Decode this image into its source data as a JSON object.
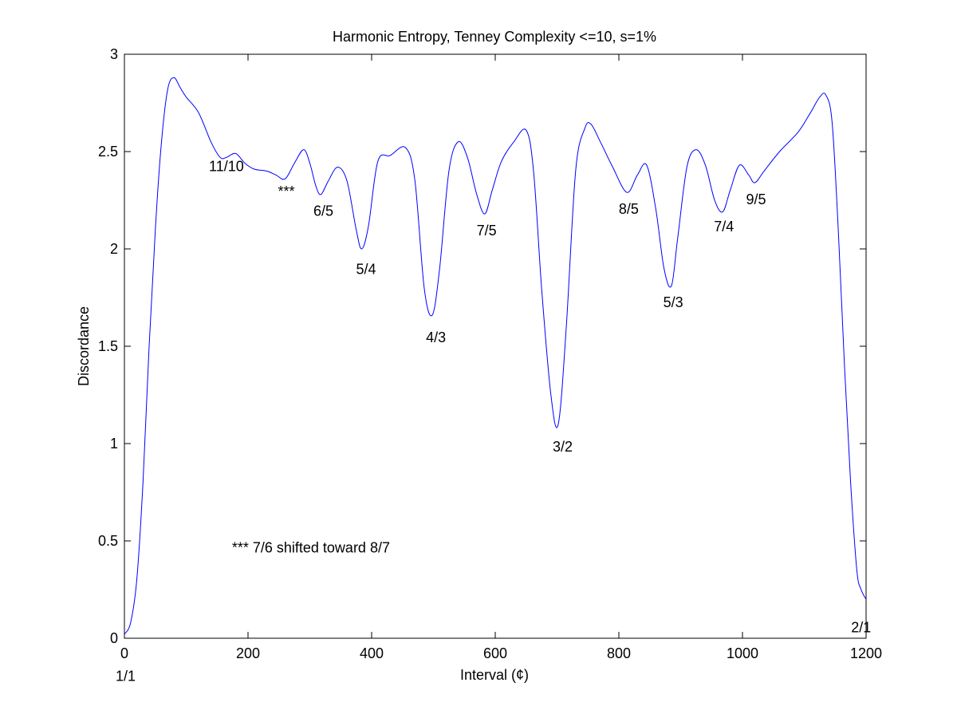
{
  "chart_data": {
    "type": "line",
    "title": "Harmonic Entropy, Tenney Complexity <=10, s=1%",
    "xlabel": "Interval (¢)",
    "ylabel": "Discordance",
    "xlim": [
      0,
      1200
    ],
    "ylim": [
      0,
      3
    ],
    "xticks": [
      0,
      200,
      400,
      600,
      800,
      1000,
      1200
    ],
    "yticks": [
      0,
      0.5,
      1,
      1.5,
      2,
      2.5,
      3
    ],
    "xtick_labels": [
      "0",
      "200",
      "400",
      "600",
      "800",
      "1000",
      "1200"
    ],
    "ytick_labels": [
      "0",
      "0.5",
      "1",
      "1.5",
      "2",
      "2.5",
      "3"
    ],
    "grid": false,
    "line_color": "#0000ff",
    "series": [
      {
        "x": [
          0,
          10,
          20,
          30,
          40,
          50,
          60,
          70,
          80,
          90,
          100,
          120,
          140,
          155,
          165,
          180,
          195,
          210,
          230,
          245,
          260,
          275,
          290,
          300,
          310,
          318,
          330,
          345,
          360,
          375,
          384,
          395,
          410,
          430,
          455,
          470,
          485,
          498,
          510,
          525,
          540,
          555,
          570,
          583,
          595,
          610,
          630,
          650,
          662,
          675,
          690,
          702,
          715,
          730,
          745,
          755,
          770,
          790,
          813,
          830,
          845,
          860,
          873,
          885,
          895,
          910,
          925,
          940,
          955,
          968,
          980,
          995,
          1010,
          1020,
          1035,
          1060,
          1090,
          1110,
          1125,
          1135,
          1145,
          1155,
          1165,
          1175,
          1185,
          1192,
          1200
        ],
        "y": [
          0.02,
          0.08,
          0.3,
          0.8,
          1.5,
          2.1,
          2.55,
          2.82,
          2.88,
          2.83,
          2.78,
          2.7,
          2.55,
          2.47,
          2.47,
          2.49,
          2.44,
          2.41,
          2.4,
          2.38,
          2.36,
          2.44,
          2.51,
          2.44,
          2.32,
          2.28,
          2.35,
          2.42,
          2.35,
          2.1,
          2.0,
          2.12,
          2.45,
          2.48,
          2.52,
          2.35,
          1.8,
          1.66,
          1.9,
          2.4,
          2.55,
          2.47,
          2.28,
          2.18,
          2.3,
          2.45,
          2.55,
          2.61,
          2.4,
          1.8,
          1.25,
          1.1,
          1.6,
          2.4,
          2.62,
          2.64,
          2.55,
          2.42,
          2.29,
          2.38,
          2.43,
          2.2,
          1.9,
          1.81,
          2.05,
          2.42,
          2.51,
          2.43,
          2.25,
          2.19,
          2.3,
          2.43,
          2.38,
          2.34,
          2.4,
          2.5,
          2.6,
          2.7,
          2.78,
          2.79,
          2.65,
          2.1,
          1.4,
          0.8,
          0.35,
          0.25,
          0.2
        ]
      }
    ],
    "annotations": [
      {
        "label": "1/1",
        "x": 2,
        "y": -0.22
      },
      {
        "label": "11/10",
        "x": 165,
        "y": 2.4
      },
      {
        "label": "***",
        "x": 262,
        "y": 2.27
      },
      {
        "label": "6/5",
        "x": 322,
        "y": 2.17
      },
      {
        "label": "5/4",
        "x": 391,
        "y": 1.87
      },
      {
        "label": "4/3",
        "x": 504,
        "y": 1.52
      },
      {
        "label": "7/5",
        "x": 586,
        "y": 2.07
      },
      {
        "label": "3/2",
        "x": 709,
        "y": 0.96
      },
      {
        "label": "8/5",
        "x": 816,
        "y": 2.18
      },
      {
        "label": "5/3",
        "x": 888,
        "y": 1.7
      },
      {
        "label": "7/4",
        "x": 970,
        "y": 2.09
      },
      {
        "label": "9/5",
        "x": 1022,
        "y": 2.23
      },
      {
        "label": "2/1",
        "x": 1192,
        "y": 0.03
      }
    ],
    "footnote": {
      "text": "*** 7/6 shifted toward 8/7",
      "x": 174,
      "y": 0.44
    }
  }
}
